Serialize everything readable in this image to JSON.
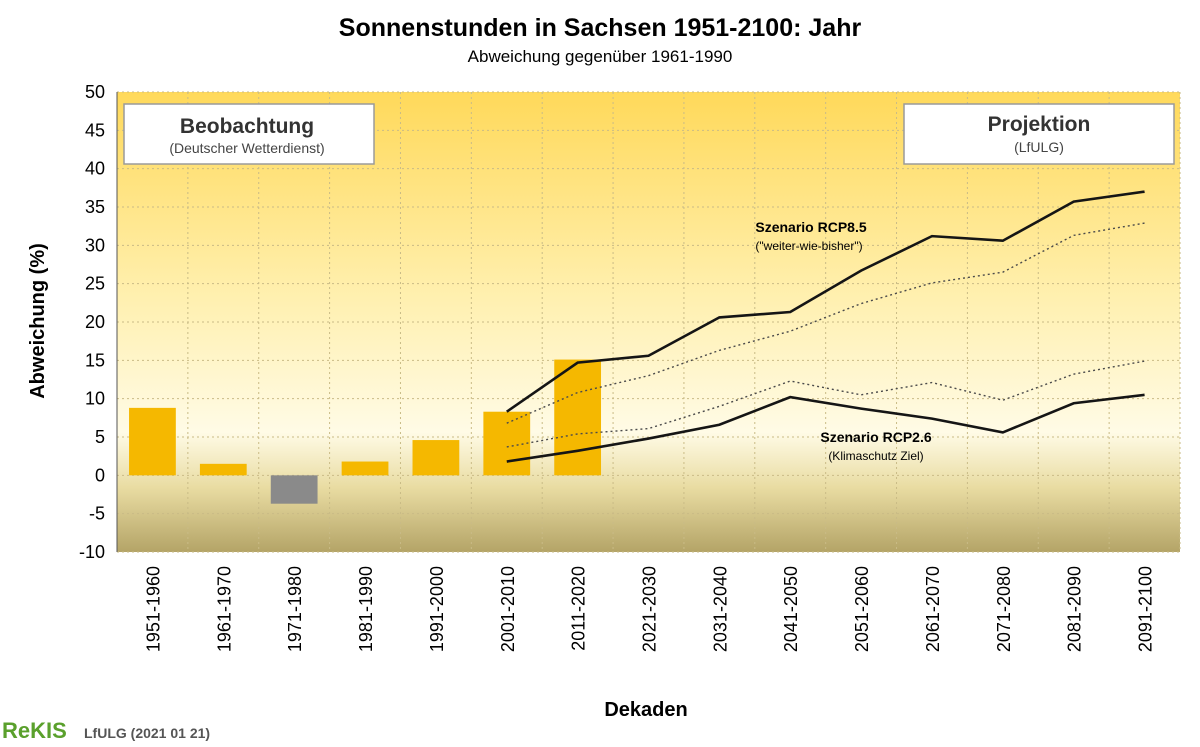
{
  "chart_data": {
    "type": "bar",
    "title": "Sonnenstunden in Sachsen 1951-2100:  Jahr",
    "subtitle": "Abweichung gegenüber 1961-1990",
    "xlabel": "Dekaden",
    "ylabel": "Abweichung (%)",
    "ylim": [
      -10,
      50
    ],
    "yticks": [
      -10,
      -5,
      0,
      5,
      10,
      15,
      20,
      25,
      30,
      35,
      40,
      45,
      50
    ],
    "categories": [
      "1951-1960",
      "1961-1970",
      "1971-1980",
      "1981-1990",
      "1991-2000",
      "2001-2010",
      "2011-2020",
      "2021-2030",
      "2031-2040",
      "2041-2050",
      "2051-2060",
      "2061-2070",
      "2071-2080",
      "2081-2090",
      "2091-2100"
    ],
    "bars": [
      {
        "category": "1951-1960",
        "value": 8.8
      },
      {
        "category": "1961-1970",
        "value": 1.5
      },
      {
        "category": "1971-1980",
        "value": -3.7
      },
      {
        "category": "1981-1990",
        "value": 1.8
      },
      {
        "category": "1991-2000",
        "value": 4.6
      },
      {
        "category": "2001-2010",
        "value": 8.3
      },
      {
        "category": "2011-2020",
        "value": 15.1
      }
    ],
    "bar_colors": {
      "positive": "#f5b800",
      "negative": "#8a8a8a"
    },
    "lines": [
      {
        "label_group": "RCP8.5",
        "style": "solid",
        "values": [
          null,
          null,
          null,
          null,
          null,
          8.3,
          14.7,
          15.6,
          20.6,
          21.3,
          26.7,
          31.2,
          30.6,
          35.7,
          37.0
        ]
      },
      {
        "label_group": "RCP8.5",
        "style": "dotted",
        "values": [
          null,
          null,
          null,
          null,
          null,
          6.8,
          10.8,
          13.0,
          16.3,
          18.8,
          22.4,
          25.1,
          26.5,
          31.3,
          32.9
        ]
      },
      {
        "label_group": "RCP2.6",
        "style": "dotted",
        "values": [
          null,
          null,
          null,
          null,
          null,
          3.7,
          5.4,
          6.1,
          9.0,
          12.3,
          10.5,
          12.1,
          9.8,
          13.2,
          14.9
        ]
      },
      {
        "label_group": "RCP2.6",
        "style": "solid",
        "values": [
          null,
          null,
          null,
          null,
          null,
          1.8,
          3.2,
          4.8,
          6.6,
          10.2,
          8.7,
          7.4,
          5.6,
          9.4,
          10.5
        ]
      }
    ],
    "annotations": [
      {
        "key": "rcp85",
        "title": "Szenario RCP8.5",
        "sub": "(\"weiter-wie-bisher\")"
      },
      {
        "key": "rcp26",
        "title": "Szenario RCP2.6",
        "sub": "(Klimaschutz Ziel)"
      }
    ],
    "boxes": {
      "observation": {
        "title": "Beobachtung",
        "sub": "(Deutscher Wetterdienst)"
      },
      "projection": {
        "title": "Projektion",
        "sub": "(LfULG)"
      }
    },
    "grid": true,
    "background": "yellow-gradient"
  },
  "footer": {
    "brand": "ReKIS",
    "source": "LfULG (2021 01 21)"
  }
}
